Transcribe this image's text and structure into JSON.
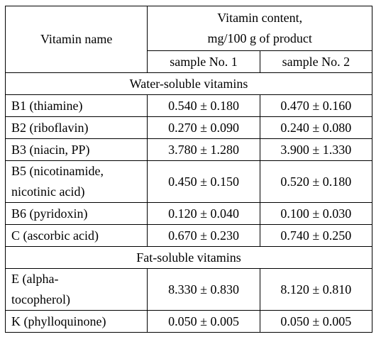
{
  "table": {
    "header": {
      "name": "Vitamin name",
      "content": [
        "Vitamin content,",
        "mg/100 g of product"
      ],
      "samples": [
        "sample No. 1",
        "sample No. 2"
      ]
    },
    "groups": [
      {
        "title": "Water-soluble vitamins",
        "rows": [
          {
            "name": [
              "B1 (thiamine)"
            ],
            "values": [
              "0.540 ± 0.180",
              "0.470 ± 0.160"
            ]
          },
          {
            "name": [
              "B2 (riboflavin)"
            ],
            "values": [
              "0.270 ± 0.090",
              "0.240 ± 0.080"
            ]
          },
          {
            "name": [
              "B3 (niacin, PP)"
            ],
            "values": [
              "3.780 ± 1.280",
              "3.900 ± 1.330"
            ]
          },
          {
            "name": [
              "B5  (nicotinamide,",
              "nicotinic acid)"
            ],
            "values": [
              "0.450 ± 0.150",
              "0.520 ± 0.180"
            ]
          },
          {
            "name": [
              "B6 (pyridoxin)"
            ],
            "values": [
              "0.120 ± 0.040",
              "0.100 ± 0.030"
            ]
          },
          {
            "name": [
              "C (ascorbic acid)"
            ],
            "values": [
              "0.670 ± 0.230",
              "0.740 ± 0.250"
            ]
          }
        ]
      },
      {
        "title": "Fat-soluble vitamins",
        "rows": [
          {
            "name": [
              "E (alpha-",
              "tocopherol)"
            ],
            "values": [
              "8.330 ± 0.830",
              "8.120 ± 0.810"
            ]
          },
          {
            "name": [
              "K (phylloquinone)"
            ],
            "values": [
              "0.050 ± 0.005",
              "0.050 ± 0.005"
            ]
          }
        ]
      }
    ]
  }
}
